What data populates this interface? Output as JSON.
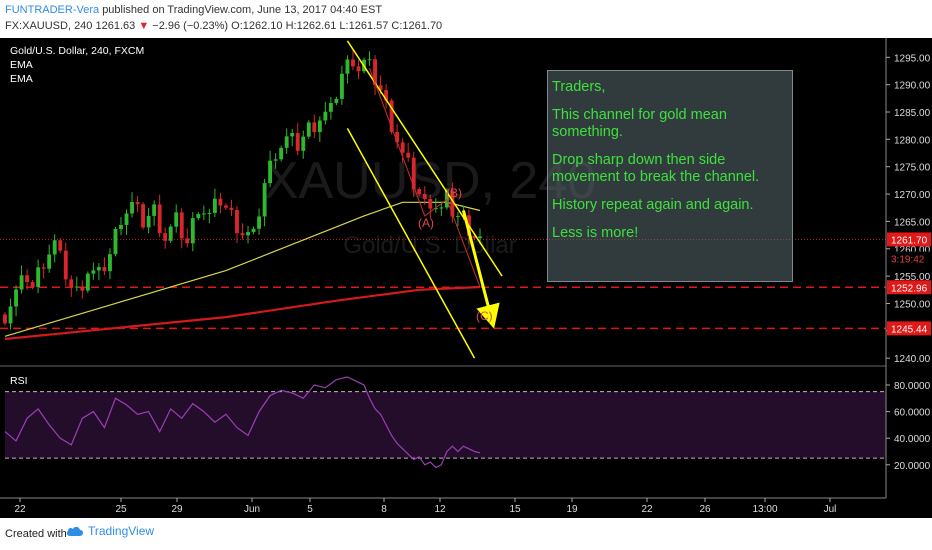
{
  "header": {
    "author": "FUNTRADER-Vera",
    "published": "published on TradingView.com, June 13, 2017 04:40 EST",
    "symbol": "FX:XAUUSD, 240",
    "last": "1261.63",
    "change": "−2.96 (−0.23%)",
    "ohlc": "O:1262.10 H:1262.61 L:1261.57 C:1261.70"
  },
  "legend": {
    "title": "Gold/U.S. Dollar, 240, FXCM",
    "ema1": "EMA",
    "ema2": "EMA"
  },
  "watermark": {
    "symbol": "XAUUSD, 240",
    "name": "Gold/U.S. Dollar"
  },
  "annotation": {
    "lines": [
      "Traders,",
      "This channel for gold mean something.",
      "Drop sharp down then side movement to break the channel.",
      "History repeat again and again.",
      "Less is more!"
    ]
  },
  "wave_labels": [
    "(A)",
    "(B)",
    "(C)"
  ],
  "price_badges": {
    "last": "1261.70",
    "countdown": "3:19:42",
    "level1": "1252.96",
    "level2": "1245.44"
  },
  "rsi_label": "RSI",
  "colors": {
    "bull": "#2eb82e",
    "bear": "#d9262c",
    "ema_fast": "#d8d64a",
    "ema_slow": "#d41a1a",
    "channel": "#ffff00",
    "level": "#e01818",
    "rsi": "#9b3fb5"
  },
  "footer": {
    "created_with": "Created with",
    "brand": "TradingView"
  },
  "chart_data": [
    {
      "type": "candlestick",
      "title": "Gold/U.S. Dollar, 240, FXCM",
      "x_ticks": [
        "22",
        "25",
        "29",
        "Jun",
        "5",
        "8",
        "12",
        "15",
        "19",
        "22",
        "26",
        "13:00",
        "Jul"
      ],
      "y_ticks": [
        "1240.00",
        "1245.00",
        "1250.00",
        "1255.00",
        "1260.00",
        "1265.00",
        "1270.00",
        "1275.00",
        "1280.00",
        "1285.00",
        "1290.00",
        "1295.00"
      ],
      "ylim": [
        1238,
        1298
      ],
      "levels": [
        1252.96,
        1245.44
      ],
      "last_price": 1261.7,
      "path": [
        [
          0,
          1248
        ],
        [
          2,
          1252
        ],
        [
          4,
          1255
        ],
        [
          5,
          1253
        ],
        [
          7,
          1258
        ],
        [
          9,
          1261
        ],
        [
          10,
          1258
        ],
        [
          12,
          1253
        ],
        [
          13,
          1252
        ],
        [
          15,
          1256
        ],
        [
          17,
          1255
        ],
        [
          19,
          1259
        ],
        [
          21,
          1266
        ],
        [
          23,
          1268
        ],
        [
          25,
          1265
        ],
        [
          27,
          1267
        ],
        [
          29,
          1262
        ],
        [
          31,
          1265
        ],
        [
          33,
          1261
        ],
        [
          35,
          1268
        ],
        [
          37,
          1266
        ],
        [
          39,
          1269
        ],
        [
          41,
          1266
        ],
        [
          43,
          1263
        ],
        [
          45,
          1262
        ],
        [
          47,
          1272
        ],
        [
          49,
          1278
        ],
        [
          51,
          1280
        ],
        [
          53,
          1279
        ],
        [
          55,
          1282
        ],
        [
          57,
          1284
        ],
        [
          59,
          1285
        ],
        [
          61,
          1292
        ],
        [
          63,
          1295
        ],
        [
          64,
          1293
        ],
        [
          65,
          1294
        ],
        [
          66,
          1293
        ],
        [
          67,
          1291
        ],
        [
          68,
          1289
        ],
        [
          69,
          1286
        ],
        [
          70,
          1283
        ],
        [
          71,
          1280
        ],
        [
          72,
          1277
        ],
        [
          73,
          1275
        ],
        [
          74,
          1272
        ],
        [
          75,
          1270
        ],
        [
          76,
          1268
        ],
        [
          77,
          1269
        ],
        [
          78,
          1268
        ],
        [
          79,
          1267
        ],
        [
          80,
          1269
        ],
        [
          81,
          1267
        ],
        [
          82,
          1266
        ],
        [
          83,
          1265
        ],
        [
          84,
          1264
        ],
        [
          85,
          1262.5
        ],
        [
          86,
          1261.7
        ]
      ],
      "ema_fast": [
        [
          0,
          1244
        ],
        [
          20,
          1250
        ],
        [
          40,
          1256
        ],
        [
          55,
          1262
        ],
        [
          65,
          1266
        ],
        [
          72,
          1268.5
        ],
        [
          80,
          1268.5
        ],
        [
          86,
          1267
        ]
      ],
      "ema_slow": [
        [
          0,
          1243.5
        ],
        [
          40,
          1247.5
        ],
        [
          60,
          1250.5
        ],
        [
          75,
          1252.5
        ],
        [
          86,
          1253
        ]
      ],
      "channel_upper": [
        [
          62,
          1298
        ],
        [
          90,
          1255
        ]
      ],
      "channel_lower": [
        [
          62,
          1282
        ],
        [
          85,
          1240
        ]
      ],
      "projection": [
        [
          83,
          1267
        ],
        [
          88,
          1247.5
        ]
      ],
      "wave_a": [
        1264,
        1262
      ],
      "wave_b": [
        1269.5,
        1270
      ],
      "wave_c": [
        1252.5,
        1249
      ]
    },
    {
      "type": "line",
      "title": "RSI",
      "y_ticks": [
        "20.0000",
        "40.0000",
        "60.0000",
        "80.0000"
      ],
      "ylim": [
        12,
        88
      ],
      "band": [
        25,
        75
      ],
      "values": [
        [
          0,
          45
        ],
        [
          2,
          38
        ],
        [
          4,
          55
        ],
        [
          6,
          62
        ],
        [
          8,
          50
        ],
        [
          10,
          40
        ],
        [
          12,
          35
        ],
        [
          14,
          55
        ],
        [
          16,
          60
        ],
        [
          18,
          48
        ],
        [
          20,
          70
        ],
        [
          22,
          65
        ],
        [
          24,
          58
        ],
        [
          26,
          60
        ],
        [
          28,
          45
        ],
        [
          30,
          62
        ],
        [
          32,
          55
        ],
        [
          34,
          66
        ],
        [
          36,
          60
        ],
        [
          38,
          52
        ],
        [
          40,
          58
        ],
        [
          42,
          48
        ],
        [
          44,
          42
        ],
        [
          46,
          60
        ],
        [
          48,
          72
        ],
        [
          50,
          76
        ],
        [
          52,
          74
        ],
        [
          54,
          70
        ],
        [
          56,
          80
        ],
        [
          58,
          78
        ],
        [
          60,
          84
        ],
        [
          62,
          86
        ],
        [
          64,
          82
        ],
        [
          65,
          80
        ],
        [
          66,
          70
        ],
        [
          67,
          62
        ],
        [
          68,
          58
        ],
        [
          69,
          50
        ],
        [
          70,
          42
        ],
        [
          71,
          36
        ],
        [
          72,
          32
        ],
        [
          73,
          28
        ],
        [
          74,
          24
        ],
        [
          75,
          26
        ],
        [
          76,
          20
        ],
        [
          77,
          22
        ],
        [
          78,
          18
        ],
        [
          79,
          20
        ],
        [
          80,
          30
        ],
        [
          81,
          34
        ],
        [
          82,
          30
        ],
        [
          83,
          34
        ],
        [
          84,
          32
        ],
        [
          85,
          30
        ],
        [
          86,
          29
        ]
      ]
    }
  ]
}
